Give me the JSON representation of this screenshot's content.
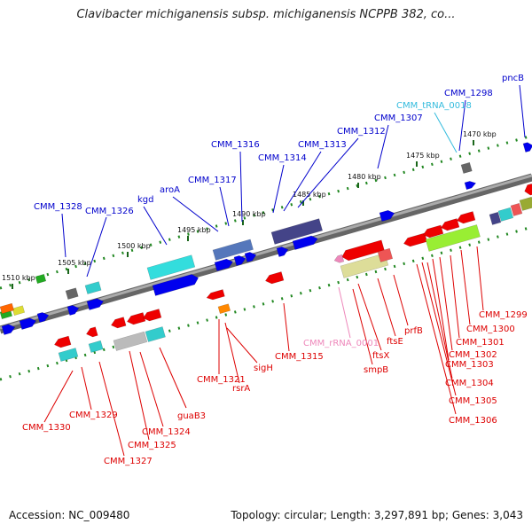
{
  "title": "Clavibacter michiganensis subsp. michiganensis NCPPB 382, co...",
  "footer": {
    "accession": "Accession: NC_009480",
    "topology": "Topology: circular; Length: 3,297,891 bp; Genes: 3,043"
  },
  "colors": {
    "backbone": "#888888",
    "forward_label": "#0000cc",
    "reverse_label": "#dd0000",
    "trna_label": "#33bbdd",
    "rrna_label": "#ee88bb",
    "track_dots": "#228822"
  },
  "scale_ticks": [
    {
      "label": "1510 kbp"
    },
    {
      "label": "1505 kbp"
    },
    {
      "label": "1500 kbp"
    },
    {
      "label": "1495 kbp"
    },
    {
      "label": "1490 kbp"
    },
    {
      "label": "1485 kbp"
    },
    {
      "label": "1480 kbp"
    },
    {
      "label": "1475 kbp"
    },
    {
      "label": "1470 kbp"
    }
  ],
  "upper_labels": [
    {
      "text": "CMM_1328",
      "kind": "forward"
    },
    {
      "text": "CMM_1326",
      "kind": "forward"
    },
    {
      "text": "kgd",
      "kind": "forward"
    },
    {
      "text": "aroA",
      "kind": "forward"
    },
    {
      "text": "CMM_1317",
      "kind": "forward"
    },
    {
      "text": "CMM_1316",
      "kind": "forward"
    },
    {
      "text": "CMM_1314",
      "kind": "forward"
    },
    {
      "text": "CMM_1313",
      "kind": "forward"
    },
    {
      "text": "CMM_1312",
      "kind": "forward"
    },
    {
      "text": "CMM_1307",
      "kind": "forward"
    },
    {
      "text": "CMM_tRNA_0018",
      "kind": "trna"
    },
    {
      "text": "CMM_1298",
      "kind": "forward"
    },
    {
      "text": "pncB",
      "kind": "forward"
    }
  ],
  "lower_labels": [
    {
      "text": "CMM_1330",
      "kind": "reverse"
    },
    {
      "text": "CMM_1329",
      "kind": "reverse"
    },
    {
      "text": "CMM_1327",
      "kind": "reverse"
    },
    {
      "text": "CMM_1325",
      "kind": "reverse"
    },
    {
      "text": "CMM_1324",
      "kind": "reverse"
    },
    {
      "text": "guaB3",
      "kind": "reverse"
    },
    {
      "text": "CMM_1321",
      "kind": "reverse"
    },
    {
      "text": "rsrA",
      "kind": "reverse"
    },
    {
      "text": "sigH",
      "kind": "reverse"
    },
    {
      "text": "CMM_1315",
      "kind": "reverse"
    },
    {
      "text": "CMM_rRNA_0001",
      "kind": "rrna"
    },
    {
      "text": "smpB",
      "kind": "reverse"
    },
    {
      "text": "ftsX",
      "kind": "reverse"
    },
    {
      "text": "ftsE",
      "kind": "reverse"
    },
    {
      "text": "prfB",
      "kind": "reverse"
    },
    {
      "text": "CMM_1299",
      "kind": "reverse"
    },
    {
      "text": "CMM_1300",
      "kind": "reverse"
    },
    {
      "text": "CMM_1301",
      "kind": "reverse"
    },
    {
      "text": "CMM_1302",
      "kind": "reverse"
    },
    {
      "text": "CMM_1303",
      "kind": "reverse"
    },
    {
      "text": "CMM_1304",
      "kind": "reverse"
    },
    {
      "text": "CMM_1305",
      "kind": "reverse"
    },
    {
      "text": "CMM_1306",
      "kind": "reverse"
    }
  ]
}
